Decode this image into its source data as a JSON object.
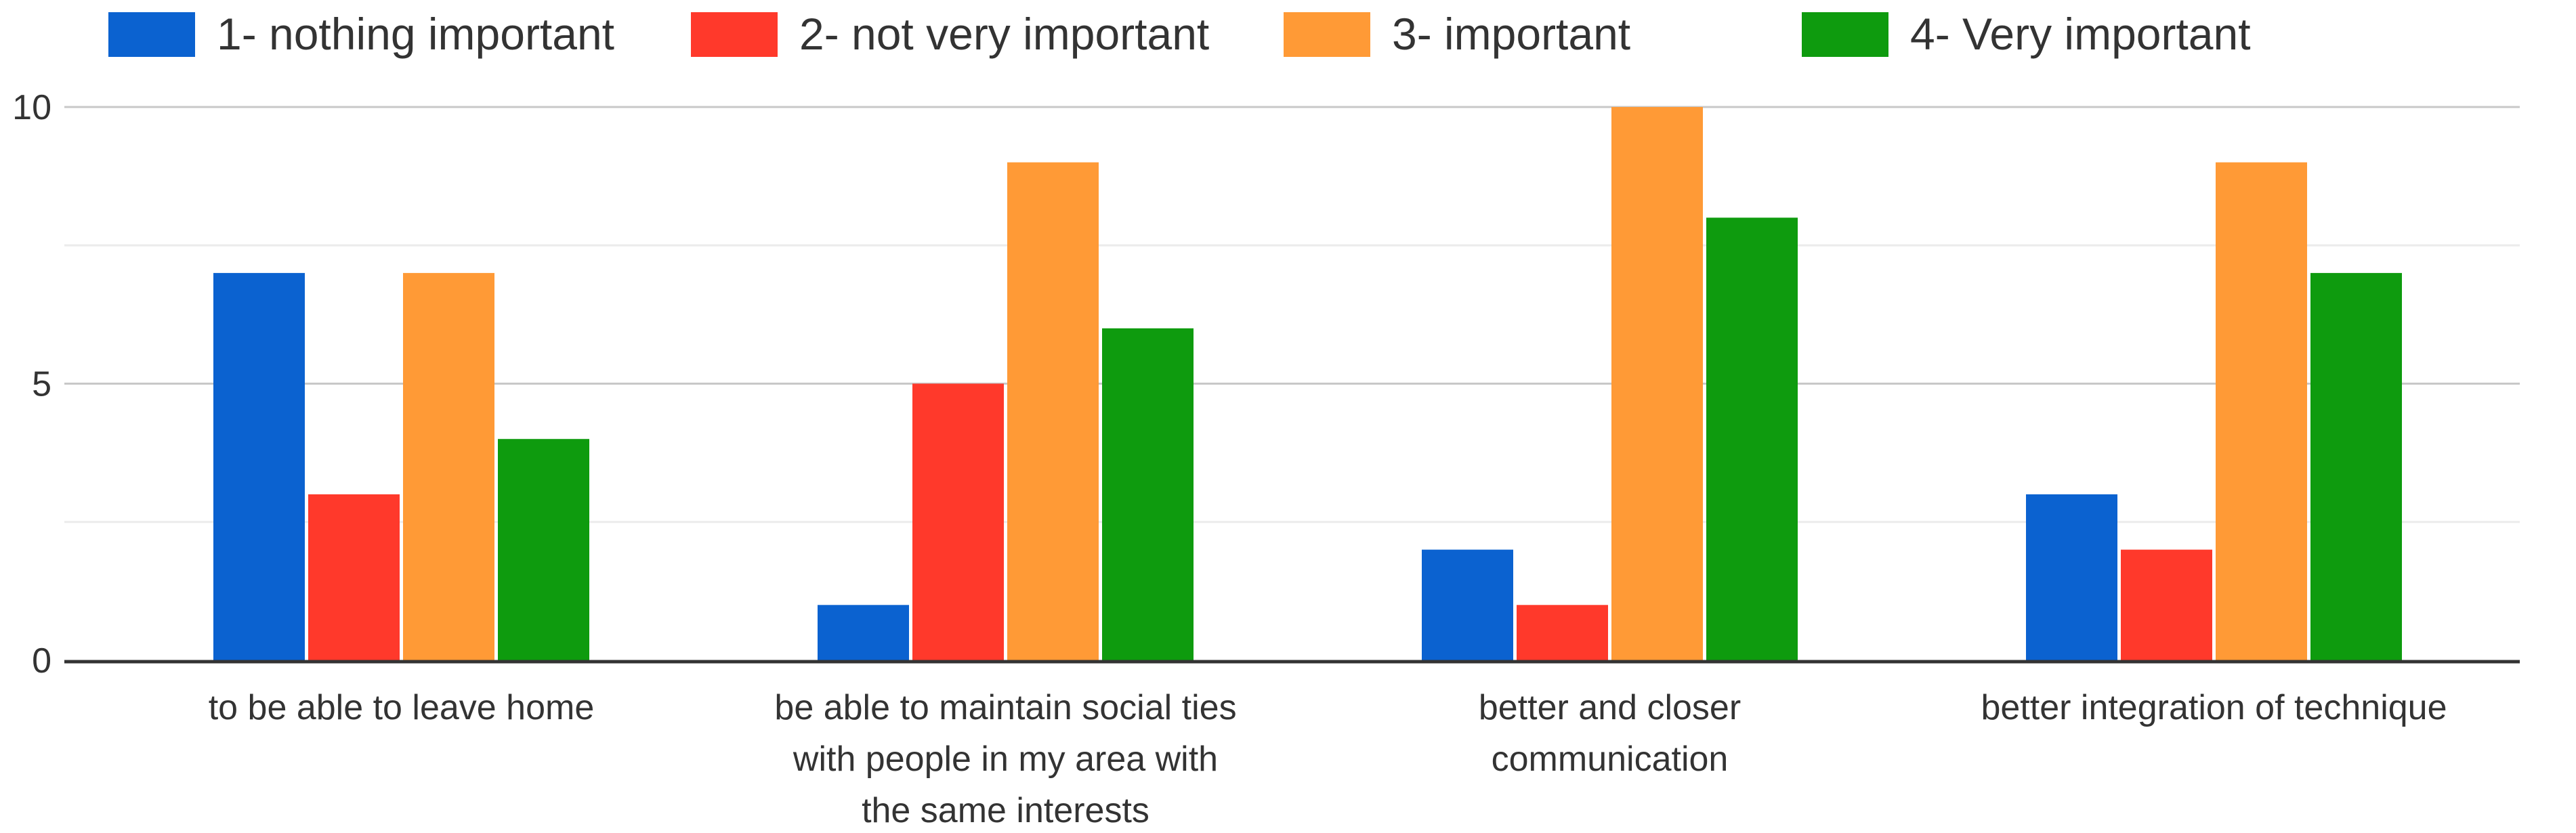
{
  "chart_data": {
    "type": "bar",
    "categories": [
      [
        "to be able to leave home"
      ],
      [
        "be able to maintain social ties",
        "with people in my area with",
        "the same interests"
      ],
      [
        "better and closer",
        "communication"
      ],
      [
        "better integration of technique"
      ]
    ],
    "series": [
      {
        "name": "1- nothing important",
        "color": "#0b62d0",
        "values": [
          7,
          1,
          2,
          3
        ]
      },
      {
        "name": "2- not very important",
        "color": "#ff392b",
        "values": [
          3,
          5,
          1,
          2
        ]
      },
      {
        "name": "3- important",
        "color": "#ff9a36",
        "values": [
          7,
          9,
          10,
          9
        ]
      },
      {
        "name": "4- Very important",
        "color": "#0e9b0e",
        "values": [
          4,
          6,
          8,
          7
        ]
      }
    ],
    "ylim": [
      0,
      10
    ],
    "yticks": [
      0,
      5,
      10
    ],
    "minor_gridlines": [
      2.5,
      7.5
    ],
    "grid": true,
    "legend_position": "top-left"
  }
}
